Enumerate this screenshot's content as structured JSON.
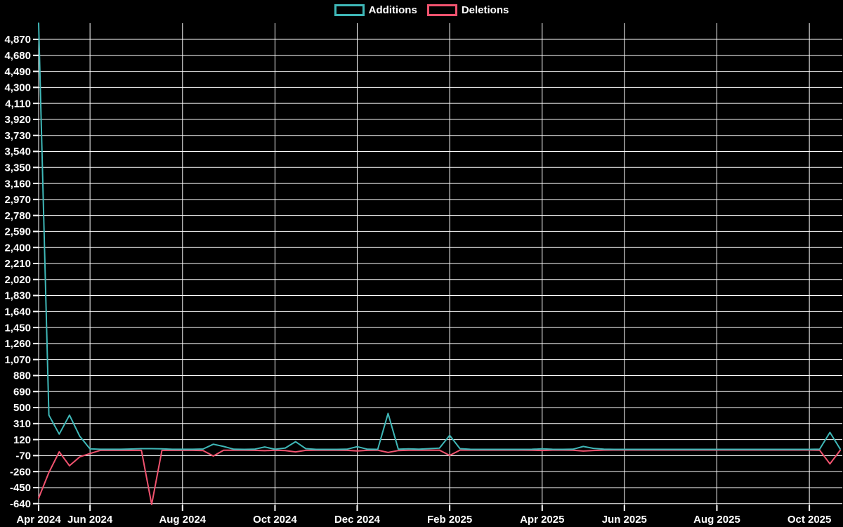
{
  "legend": {
    "items": [
      {
        "label": "Additions",
        "color": "#3fb8b8"
      },
      {
        "label": "Deletions",
        "color": "#f1536f"
      }
    ]
  },
  "chart_data": {
    "type": "line",
    "title": "",
    "xlabel": "",
    "ylabel": "",
    "background_color": "#000000",
    "grid": true,
    "grid_color": "#ffffff",
    "text_color": "#ffffff",
    "legend_position": "top-center",
    "y_axis": {
      "tick_min": -640,
      "tick_max": 4870,
      "tick_step": 190,
      "ylim": [
        -659,
        5062
      ]
    },
    "x_ticks": [
      {
        "label": "Apr 2024",
        "week": 0
      },
      {
        "label": "Jun 2024",
        "week": 5
      },
      {
        "label": "Aug 2024",
        "week": 14
      },
      {
        "label": "Oct 2024",
        "week": 23
      },
      {
        "label": "Dec 2024",
        "week": 31
      },
      {
        "label": "Feb 2025",
        "week": 40
      },
      {
        "label": "Apr 2025",
        "week": 49
      },
      {
        "label": "Jun 2025",
        "week": 57
      },
      {
        "label": "Aug 2025",
        "week": 66
      },
      {
        "label": "Oct 2025",
        "week": 75
      }
    ],
    "x": [
      "2024-04-28",
      "2024-05-05",
      "2024-05-12",
      "2024-05-19",
      "2024-05-26",
      "2024-06-02",
      "2024-06-09",
      "2024-06-16",
      "2024-06-23",
      "2024-06-30",
      "2024-07-07",
      "2024-07-14",
      "2024-07-21",
      "2024-07-28",
      "2024-08-04",
      "2024-08-11",
      "2024-08-18",
      "2024-08-25",
      "2024-09-01",
      "2024-09-08",
      "2024-09-15",
      "2024-09-22",
      "2024-09-29",
      "2024-10-06",
      "2024-10-13",
      "2024-10-20",
      "2024-10-27",
      "2024-11-03",
      "2024-11-10",
      "2024-11-17",
      "2024-11-24",
      "2024-12-01",
      "2024-12-08",
      "2024-12-15",
      "2024-12-22",
      "2024-12-29",
      "2025-01-05",
      "2025-01-12",
      "2025-01-19",
      "2025-01-26",
      "2025-02-02",
      "2025-02-09",
      "2025-02-16",
      "2025-02-23",
      "2025-03-02",
      "2025-03-09",
      "2025-03-16",
      "2025-03-23",
      "2025-03-30",
      "2025-04-06",
      "2025-04-13",
      "2025-04-20",
      "2025-04-27",
      "2025-05-04",
      "2025-05-11",
      "2025-05-18",
      "2025-05-25",
      "2025-06-01",
      "2025-06-08",
      "2025-06-15",
      "2025-06-22",
      "2025-06-29",
      "2025-07-06",
      "2025-07-13",
      "2025-07-20",
      "2025-07-27",
      "2025-08-03",
      "2025-08-10",
      "2025-08-17",
      "2025-08-24",
      "2025-08-31",
      "2025-09-07",
      "2025-09-14",
      "2025-09-21",
      "2025-09-28",
      "2025-10-05",
      "2025-10-12",
      "2025-10-19",
      "2025-10-26"
    ],
    "series": [
      {
        "name": "Additions",
        "color": "#3fb8b8",
        "values": [
          5062,
          410,
          185,
          410,
          160,
          10,
          5,
          5,
          5,
          8,
          12,
          12,
          10,
          5,
          5,
          5,
          8,
          65,
          38,
          6,
          4,
          6,
          32,
          5,
          20,
          95,
          12,
          4,
          4,
          4,
          6,
          36,
          6,
          4,
          430,
          6,
          10,
          6,
          12,
          18,
          170,
          12,
          5,
          4,
          4,
          4,
          4,
          4,
          5,
          10,
          5,
          4,
          6,
          38,
          16,
          6,
          4,
          4,
          4,
          4,
          4,
          4,
          4,
          4,
          4,
          4,
          4,
          4,
          4,
          4,
          4,
          4,
          4,
          4,
          4,
          4,
          6,
          205,
          8
        ]
      },
      {
        "name": "Deletions",
        "color": "#f1536f",
        "values": [
          -575,
          -270,
          -25,
          -190,
          -85,
          -45,
          -8,
          -8,
          -8,
          -8,
          -8,
          -650,
          -8,
          -8,
          -8,
          -8,
          -10,
          -75,
          -6,
          -6,
          -6,
          -8,
          -12,
          -6,
          -10,
          -26,
          -8,
          -6,
          -6,
          -6,
          -8,
          -14,
          -8,
          -6,
          -33,
          -10,
          -6,
          -6,
          -6,
          -5,
          -68,
          -5,
          -5,
          -5,
          -5,
          -5,
          -5,
          -5,
          -6,
          -9,
          -5,
          -5,
          -6,
          -16,
          -9,
          -5,
          -4,
          -4,
          -4,
          -4,
          -4,
          -4,
          -4,
          -4,
          -4,
          -4,
          -4,
          -4,
          -4,
          -4,
          -4,
          -4,
          -4,
          -4,
          -4,
          -4,
          -6,
          -168,
          -8
        ]
      }
    ]
  }
}
